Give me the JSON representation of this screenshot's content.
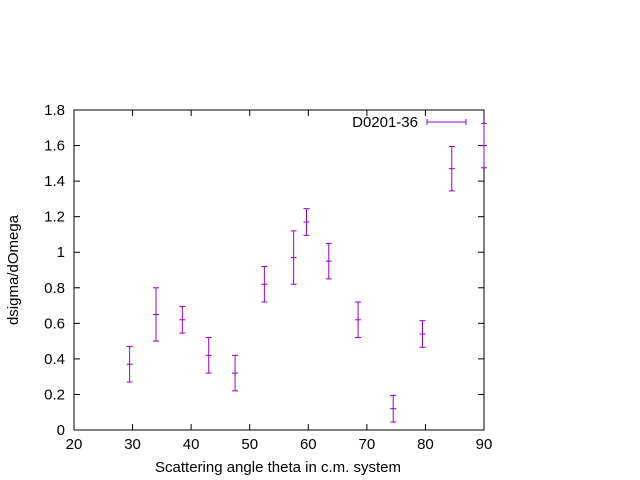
{
  "chart_data": {
    "type": "scatter",
    "title": "",
    "xlabel": "Scattering angle theta in c.m. system",
    "ylabel": "dsigma/dOmega",
    "xlim": [
      20,
      90
    ],
    "ylim": [
      0,
      1.8
    ],
    "xticks": [
      20,
      30,
      40,
      50,
      60,
      70,
      80,
      90
    ],
    "yticks": [
      0,
      0.2,
      0.4,
      0.6,
      0.8,
      1,
      1.2,
      1.4,
      1.6,
      1.8
    ],
    "grid": false,
    "legend_position": "top-right",
    "series": [
      {
        "name": "D0201-36",
        "color": "#9400d3",
        "error_bars": true,
        "points": [
          {
            "x": 29.5,
            "y": 0.37,
            "err": 0.1
          },
          {
            "x": 34.0,
            "y": 0.65,
            "err": 0.15
          },
          {
            "x": 38.5,
            "y": 0.62,
            "err": 0.075
          },
          {
            "x": 43.0,
            "y": 0.42,
            "err": 0.1
          },
          {
            "x": 47.5,
            "y": 0.32,
            "err": 0.1
          },
          {
            "x": 52.5,
            "y": 0.82,
            "err": 0.1
          },
          {
            "x": 57.5,
            "y": 0.97,
            "err": 0.15
          },
          {
            "x": 59.7,
            "y": 1.17,
            "err": 0.075
          },
          {
            "x": 63.5,
            "y": 0.95,
            "err": 0.1
          },
          {
            "x": 68.5,
            "y": 0.62,
            "err": 0.1
          },
          {
            "x": 74.5,
            "y": 0.12,
            "err": 0.075
          },
          {
            "x": 79.5,
            "y": 0.54,
            "err": 0.075
          },
          {
            "x": 84.5,
            "y": 1.47,
            "err": 0.125
          },
          {
            "x": 90.0,
            "y": 1.6,
            "err": 0.125
          }
        ]
      }
    ]
  }
}
